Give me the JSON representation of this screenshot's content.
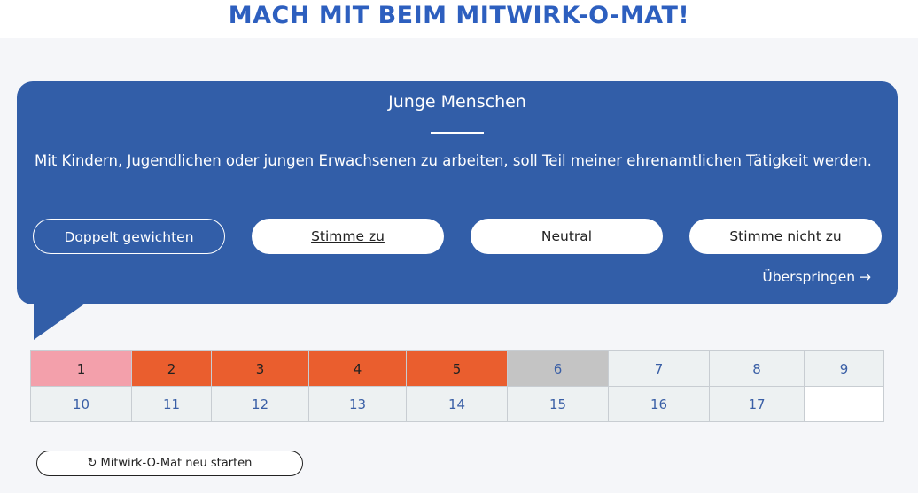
{
  "header": {
    "title": "MACH MIT BEIM MITWIRK-O-MAT!"
  },
  "question": {
    "topic": "Junge Menschen",
    "statement": "Mit Kindern, Jugendlichen oder jungen Erwachsenen zu arbeiten, soll Teil meiner ehrenamtlichen Tätigkeit werden.",
    "buttons": {
      "double_weight": "Doppelt gewichten",
      "agree": "Stimme zu",
      "neutral": "Neutral",
      "disagree": "Stimme nicht zu"
    },
    "skip_label": "Überspringen →"
  },
  "progress": {
    "row1": [
      "1",
      "2",
      "3",
      "4",
      "5",
      "6",
      "7",
      "8",
      "9"
    ],
    "row2": [
      "10",
      "11",
      "12",
      "13",
      "14",
      "15",
      "16",
      "17"
    ],
    "states": {
      "1": "current",
      "2": "answered",
      "3": "answered",
      "4": "answered",
      "5": "answered",
      "6": "skipped"
    },
    "colors": {
      "current": "#f3a0ab",
      "answered": "#ea5e2e",
      "skipped": "#c4c4c4",
      "open": "#edf1f2"
    }
  },
  "footer": {
    "restart_icon": "restart-icon",
    "restart_label": "Mitwirk-O-Mat neu starten"
  },
  "colors": {
    "brand_blue": "#325ea8",
    "title_blue": "#2d5fbf",
    "background": "#f5f6f9"
  }
}
